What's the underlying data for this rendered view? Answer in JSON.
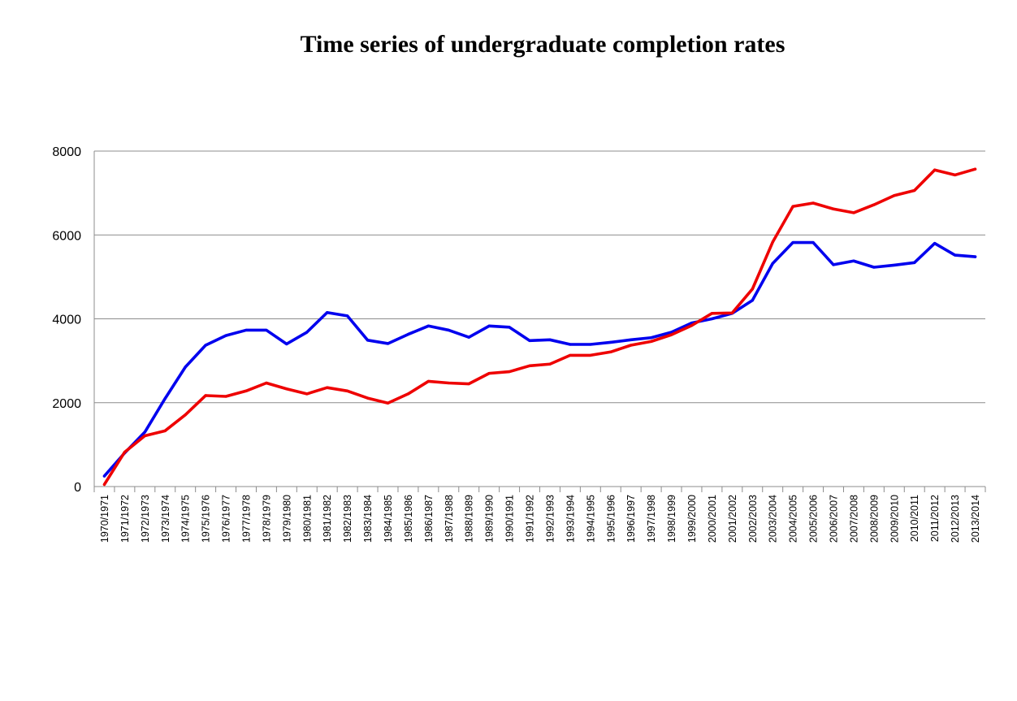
{
  "chart_data": {
    "type": "line",
    "title": "Time series of undergraduate completion rates",
    "xlabel": "",
    "ylabel": "",
    "ylim": [
      0,
      8000
    ],
    "yticks": [
      0,
      2000,
      4000,
      6000,
      8000
    ],
    "grid": true,
    "categories": [
      "1970/1971",
      "1971/1972",
      "1972/1973",
      "1973/1974",
      "1974/1975",
      "1975/1976",
      "1976/1977",
      "1977/1978",
      "1978/1979",
      "1979/1980",
      "1980/1981",
      "1981/1982",
      "1982/1983",
      "1983/1984",
      "1984/1985",
      "1985/1986",
      "1986/1987",
      "1987/1988",
      "1988/1989",
      "1989/1990",
      "1990/1991",
      "1991/1992",
      "1992/1993",
      "1993/1994",
      "1994/1995",
      "1995/1996",
      "1996/1997",
      "1997/1998",
      "1998/1999",
      "1999/2000",
      "2000/2001",
      "2001/2002",
      "2002/2003",
      "2003/2004",
      "2004/2005",
      "2005/2006",
      "2006/2007",
      "2007/2008",
      "2008/2009",
      "2009/2010",
      "2010/2011",
      "2011/2012",
      "2012/2013",
      "2013/2014"
    ],
    "series": [
      {
        "color": "#0000ee",
        "values": [
          250,
          800,
          1300,
          2100,
          2850,
          3370,
          3600,
          3730,
          3730,
          3400,
          3680,
          4150,
          4070,
          3490,
          3410,
          3630,
          3830,
          3730,
          3560,
          3830,
          3800,
          3480,
          3500,
          3390,
          3390,
          3440,
          3500,
          3550,
          3680,
          3900,
          4000,
          4130,
          4440,
          5320,
          5820,
          5820,
          5290,
          5380,
          5230,
          5280,
          5340,
          5800,
          5520,
          5480
        ]
      },
      {
        "color": "#ee0000",
        "values": [
          50,
          820,
          1210,
          1330,
          1710,
          2170,
          2150,
          2280,
          2470,
          2330,
          2210,
          2360,
          2280,
          2110,
          1990,
          2210,
          2510,
          2470,
          2450,
          2700,
          2740,
          2880,
          2920,
          3130,
          3130,
          3210,
          3370,
          3460,
          3620,
          3840,
          4130,
          4140,
          4710,
          5830,
          6680,
          6760,
          6620,
          6530,
          6720,
          6940,
          7060,
          7550,
          7430,
          7570
        ]
      }
    ]
  }
}
